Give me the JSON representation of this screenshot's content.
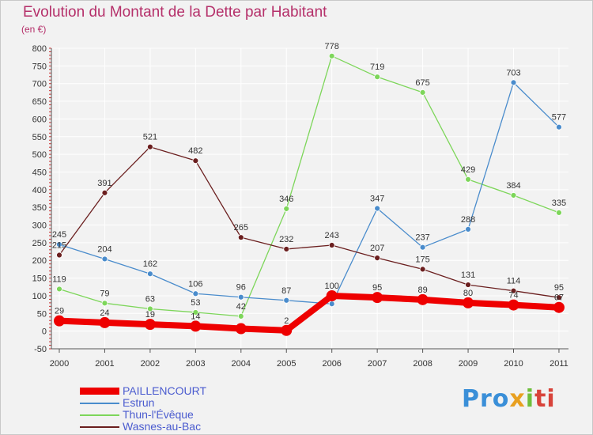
{
  "title": "Evolution du Montant de la Dette par Habitant",
  "unit_label": "(en €)",
  "logo": [
    "Pro",
    "x",
    "i",
    "ti"
  ],
  "logo_colors": [
    "#3a8fd8",
    "#e8a020",
    "#6fbf3c",
    "#d8433a"
  ],
  "chart_data": {
    "type": "line",
    "title": "Evolution du Montant de la Dette par Habitant",
    "ylabel": "(en €)",
    "xlabel": "",
    "categories": [
      "2000",
      "2001",
      "2002",
      "2003",
      "2004",
      "2005",
      "2006",
      "2007",
      "2008",
      "2009",
      "2010",
      "2011"
    ],
    "ylim": [
      -50,
      800
    ],
    "yticks": [
      "-50",
      "0",
      "50",
      "100",
      "150",
      "200",
      "250",
      "300",
      "350",
      "400",
      "450",
      "500",
      "550",
      "600",
      "650",
      "700",
      "750",
      "800"
    ],
    "grid": true,
    "legend_position": "bottom-left",
    "series": [
      {
        "name": "PAILLENCOURT",
        "color": "#ee0000",
        "values": [
          29,
          24,
          19,
          14,
          7,
          2,
          100,
          95,
          89,
          80,
          74,
          67
        ],
        "labels": [
          "29",
          "24",
          "19",
          "14",
          "",
          "2",
          "100",
          "95",
          "89",
          "80",
          "74",
          "67"
        ]
      },
      {
        "name": "Estrun",
        "color": "#4a8ccc",
        "values": [
          245,
          204,
          162,
          106,
          96,
          87,
          77,
          347,
          237,
          288,
          703,
          577
        ],
        "labels": [
          "245",
          "204",
          "162",
          "106",
          "96",
          "87",
          "",
          "347",
          "237",
          "288",
          "703",
          "577"
        ]
      },
      {
        "name": "Thun-l'Évêque",
        "color": "#7dd65a",
        "values": [
          119,
          79,
          63,
          53,
          42,
          346,
          778,
          719,
          675,
          429,
          384,
          335
        ],
        "labels": [
          "119",
          "79",
          "63",
          "53",
          "42",
          "346",
          "778",
          "719",
          "675",
          "429",
          "384",
          "335"
        ]
      },
      {
        "name": "Wasnes-au-Bac",
        "color": "#6b1f1f",
        "values": [
          215,
          391,
          521,
          482,
          265,
          232,
          243,
          207,
          175,
          131,
          114,
          95
        ],
        "labels": [
          "215",
          "391",
          "521",
          "482",
          "265",
          "232",
          "243",
          "207",
          "175",
          "131",
          "114",
          "95"
        ]
      }
    ]
  }
}
